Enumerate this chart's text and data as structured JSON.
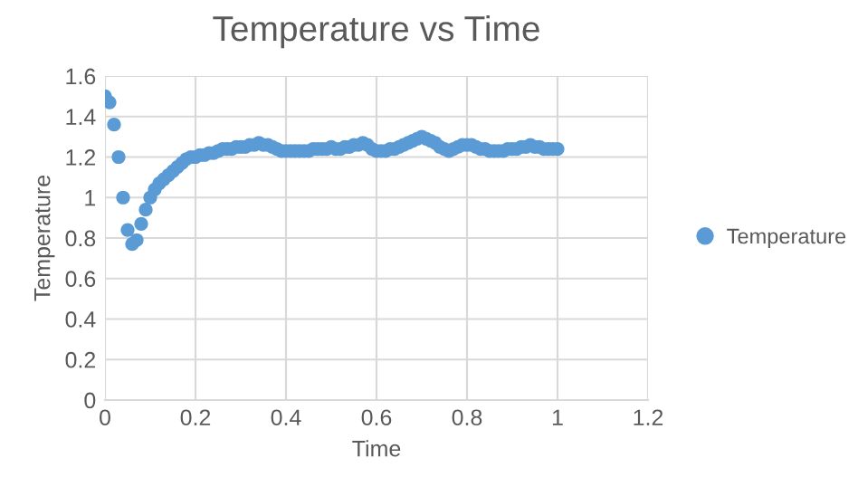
{
  "chart_data": {
    "type": "scatter",
    "title": "Temperature vs Time",
    "xlabel": "Time",
    "ylabel": "Temperature",
    "xlim": [
      0,
      1.2
    ],
    "xticks": [
      0,
      0.2,
      0.4,
      0.6,
      0.8,
      1,
      1.2
    ],
    "ylim": [
      0,
      1.6
    ],
    "yticks": [
      0,
      0.2,
      0.4,
      0.6,
      0.8,
      1,
      1.2,
      1.4,
      1.6
    ],
    "grid": true,
    "legend": "right",
    "marker": "circle",
    "x": [
      0,
      0.01,
      0.02,
      0.03,
      0.04,
      0.05,
      0.06,
      0.07,
      0.08,
      0.09,
      0.1,
      0.11,
      0.12,
      0.13,
      0.14,
      0.15,
      0.16,
      0.17,
      0.18,
      0.19,
      0.2,
      0.21,
      0.22,
      0.23,
      0.24,
      0.25,
      0.26,
      0.27,
      0.28,
      0.29,
      0.3,
      0.31,
      0.32,
      0.33,
      0.34,
      0.35,
      0.36,
      0.37,
      0.38,
      0.39,
      0.4,
      0.41,
      0.42,
      0.43,
      0.44,
      0.45,
      0.46,
      0.47,
      0.48,
      0.49,
      0.5,
      0.51,
      0.52,
      0.53,
      0.54,
      0.55,
      0.56,
      0.57,
      0.58,
      0.59,
      0.6,
      0.61,
      0.62,
      0.63,
      0.64,
      0.65,
      0.66,
      0.67,
      0.68,
      0.69,
      0.7,
      0.71,
      0.72,
      0.73,
      0.74,
      0.75,
      0.76,
      0.77,
      0.78,
      0.79,
      0.8,
      0.81,
      0.82,
      0.83,
      0.84,
      0.85,
      0.86,
      0.87,
      0.88,
      0.89,
      0.9,
      0.91,
      0.92,
      0.93,
      0.94,
      0.95,
      0.96,
      0.97,
      0.98,
      0.99,
      1
    ],
    "series": [
      {
        "name": "Temperature",
        "color": "#5b9bd5",
        "values": [
          1.5,
          1.47,
          1.36,
          1.2,
          1.0,
          0.84,
          0.77,
          0.79,
          0.87,
          0.94,
          1.0,
          1.04,
          1.07,
          1.09,
          1.11,
          1.13,
          1.15,
          1.17,
          1.19,
          1.2,
          1.2,
          1.21,
          1.21,
          1.22,
          1.22,
          1.23,
          1.24,
          1.24,
          1.24,
          1.25,
          1.25,
          1.25,
          1.26,
          1.26,
          1.27,
          1.26,
          1.26,
          1.25,
          1.24,
          1.23,
          1.23,
          1.23,
          1.23,
          1.23,
          1.23,
          1.23,
          1.24,
          1.24,
          1.24,
          1.24,
          1.25,
          1.24,
          1.24,
          1.25,
          1.25,
          1.26,
          1.26,
          1.27,
          1.26,
          1.24,
          1.23,
          1.23,
          1.23,
          1.24,
          1.24,
          1.25,
          1.26,
          1.27,
          1.28,
          1.29,
          1.3,
          1.29,
          1.28,
          1.27,
          1.25,
          1.24,
          1.23,
          1.24,
          1.25,
          1.26,
          1.26,
          1.26,
          1.25,
          1.24,
          1.24,
          1.23,
          1.23,
          1.23,
          1.23,
          1.24,
          1.24,
          1.24,
          1.25,
          1.25,
          1.26,
          1.25,
          1.25,
          1.24,
          1.24,
          1.24,
          1.24
        ]
      }
    ]
  }
}
